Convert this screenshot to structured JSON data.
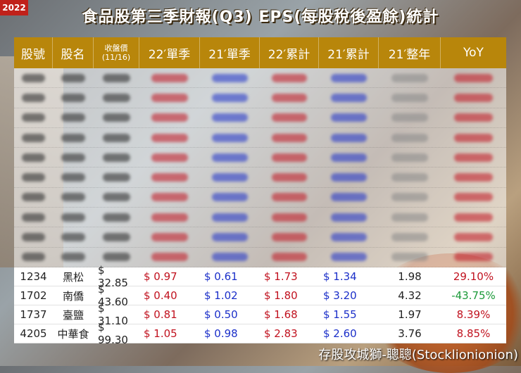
{
  "year_badge": "2022",
  "title": "食品股第三季財報(Q3) EPS(每股稅後盈餘)統計",
  "headers": {
    "code": "股號",
    "name": "股名",
    "close_label": "收盤價",
    "close_date": "(11/16)",
    "q22": "22′單季",
    "q21": "21′單季",
    "cum22": "22′累計",
    "cum21": "21′累計",
    "year21": "21′整年",
    "yoy": "YoY"
  },
  "rows": [
    {
      "code": "1234",
      "name": "黑松",
      "price": "$ 32.85",
      "q22": "$ 0.97",
      "q21": "$ 0.61",
      "cum22": "$ 1.73",
      "cum21": "$ 1.34",
      "year21": "1.98",
      "yoy": "29.10%",
      "yoy_color": "red"
    },
    {
      "code": "1702",
      "name": "南僑",
      "price": "$ 43.60",
      "q22": "$ 0.40",
      "q21": "$ 1.02",
      "cum22": "$ 1.80",
      "cum21": "$ 3.20",
      "year21": "4.32",
      "yoy": "-43.75%",
      "yoy_color": "green"
    },
    {
      "code": "1737",
      "name": "臺鹽",
      "price": "$ 31.10",
      "q22": "$ 0.81",
      "q21": "$ 0.50",
      "cum22": "$ 1.68",
      "cum21": "$ 1.55",
      "year21": "1.97",
      "yoy": "8.39%",
      "yoy_color": "red"
    },
    {
      "code": "4205",
      "name": "中華食",
      "price": "$ 99.30",
      "q22": "$ 1.05",
      "q21": "$ 0.98",
      "cum22": "$ 2.83",
      "cum21": "$ 2.60",
      "year21": "3.76",
      "yoy": "8.85%",
      "yoy_color": "red"
    }
  ],
  "footer": "存股攻城獅-聰聰(Stocklionionion)",
  "colors": {
    "header_bg": "#b8860b",
    "badge": "#c0211a",
    "red": "#c1121f",
    "blue": "#1b2fc9",
    "green": "#1c9a3a"
  }
}
